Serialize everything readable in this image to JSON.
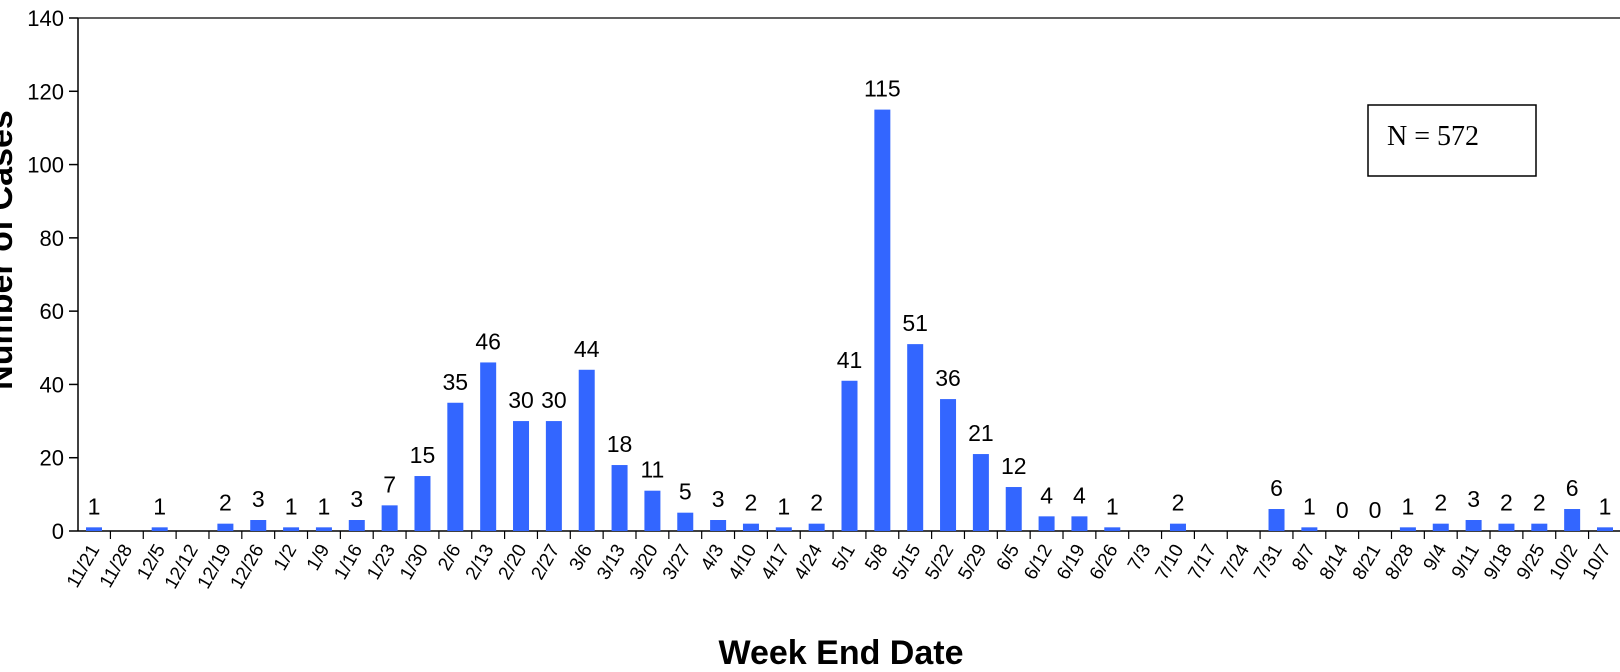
{
  "chart_data": {
    "type": "bar",
    "xlabel": "Week End Date",
    "ylabel": "Number of Cases",
    "ylim": [
      0,
      140
    ],
    "yticks": [
      0,
      20,
      40,
      60,
      80,
      100,
      120,
      140
    ],
    "bar_color": "#3366ff",
    "grid": false,
    "annotation": "N = 572",
    "categories": [
      "11/21",
      "11/28",
      "12/5",
      "12/12",
      "12/19",
      "12/26",
      "1/2",
      "1/9",
      "1/16",
      "1/23",
      "1/30",
      "2/6",
      "2/13",
      "2/20",
      "2/27",
      "3/6",
      "3/13",
      "3/20",
      "3/27",
      "4/3",
      "4/10",
      "4/17",
      "4/24",
      "5/1",
      "5/8",
      "5/15",
      "5/22",
      "5/29",
      "6/5",
      "6/12",
      "6/19",
      "6/26",
      "7/3",
      "7/10",
      "7/17",
      "7/24",
      "7/31",
      "8/7",
      "8/14",
      "8/21",
      "8/28",
      "9/4",
      "9/11",
      "9/18",
      "9/25",
      "10/2",
      "10/7"
    ],
    "values": [
      1,
      null,
      1,
      null,
      2,
      3,
      1,
      1,
      3,
      7,
      15,
      35,
      46,
      30,
      30,
      44,
      18,
      11,
      5,
      3,
      2,
      1,
      2,
      41,
      115,
      51,
      36,
      21,
      12,
      4,
      4,
      1,
      null,
      2,
      null,
      null,
      6,
      1,
      0,
      0,
      1,
      2,
      3,
      2,
      2,
      6,
      1
    ],
    "labels": [
      "1",
      "",
      "1",
      "",
      "2",
      "3",
      "1",
      "1",
      "3",
      "7",
      "15",
      "35",
      "46",
      "30",
      "30",
      "44",
      "18",
      "11",
      "5",
      "3",
      "2",
      "1",
      "2",
      "41",
      "115",
      "51",
      "36",
      "21",
      "12",
      "4",
      "4",
      "1",
      "",
      "2",
      "",
      "",
      "6",
      "1",
      "0",
      "0",
      "1",
      "2",
      "3",
      "2",
      "2",
      "6",
      "1"
    ]
  }
}
